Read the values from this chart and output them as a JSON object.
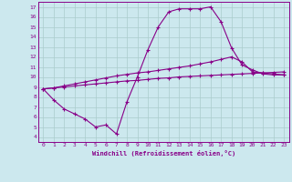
{
  "background_color": "#cce8ee",
  "grid_color": "#aacccc",
  "line_color": "#880088",
  "xlabel": "Windchill (Refroidissement éolien,°C)",
  "xlim": [
    -0.5,
    23.5
  ],
  "ylim": [
    3.5,
    17.5
  ],
  "xticks": [
    0,
    1,
    2,
    3,
    4,
    5,
    6,
    7,
    8,
    9,
    10,
    11,
    12,
    13,
    14,
    15,
    16,
    17,
    18,
    19,
    20,
    21,
    22,
    23
  ],
  "yticks": [
    4,
    5,
    6,
    7,
    8,
    9,
    10,
    11,
    12,
    13,
    14,
    15,
    16,
    17
  ],
  "line1_x": [
    0,
    1,
    2,
    3,
    4,
    5,
    6,
    7,
    8,
    9,
    10,
    11,
    12,
    13,
    14,
    15,
    16,
    17,
    18,
    19,
    20,
    21,
    22,
    23
  ],
  "line1_y": [
    8.8,
    8.9,
    9.0,
    9.1,
    9.2,
    9.3,
    9.4,
    9.5,
    9.6,
    9.65,
    9.75,
    9.85,
    9.9,
    10.0,
    10.05,
    10.1,
    10.15,
    10.2,
    10.25,
    10.3,
    10.35,
    10.4,
    10.45,
    10.5
  ],
  "line2_x": [
    0,
    1,
    2,
    3,
    4,
    5,
    6,
    7,
    8,
    9,
    10,
    11,
    12,
    13,
    14,
    15,
    16,
    17,
    18,
    19,
    20,
    21,
    22,
    23
  ],
  "line2_y": [
    8.8,
    8.9,
    9.1,
    9.3,
    9.5,
    9.7,
    9.9,
    10.1,
    10.25,
    10.4,
    10.5,
    10.65,
    10.8,
    10.95,
    11.1,
    11.3,
    11.5,
    11.75,
    12.0,
    11.5,
    10.5,
    10.4,
    10.3,
    10.2
  ],
  "line3_x": [
    0,
    1,
    2,
    3,
    4,
    5,
    6,
    7,
    8,
    9,
    10,
    11,
    12,
    13,
    14,
    15,
    16,
    17,
    18,
    19,
    20,
    21,
    22,
    23
  ],
  "line3_y": [
    8.8,
    7.7,
    6.8,
    6.3,
    5.8,
    5.0,
    5.2,
    4.3,
    7.5,
    10.0,
    12.7,
    15.0,
    16.5,
    16.8,
    16.8,
    16.8,
    17.0,
    15.5,
    12.9,
    11.2,
    10.7,
    10.3,
    10.2,
    10.2
  ]
}
